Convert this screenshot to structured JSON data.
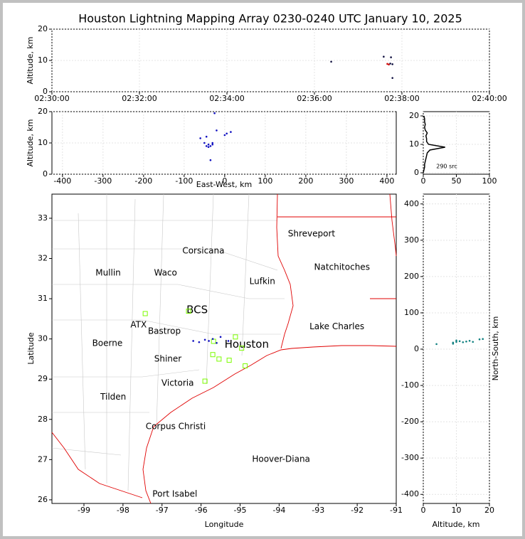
{
  "chart_data": [
    {
      "type": "scatter",
      "title": "Houston Lightning Mapping Array 0230-0240 UTC January 10, 2025",
      "ylabel": "Altitude, km",
      "grid": true,
      "xlim": [
        "02:30:00",
        "02:40:00"
      ],
      "xticks": [
        "02:30:00",
        "02:32:00",
        "02:34:00",
        "02:36:00",
        "02:38:00",
        "02:40:00"
      ],
      "ylim": [
        0,
        20
      ],
      "yticks": [
        0,
        10,
        20
      ],
      "series": [
        {
          "color": "#101040",
          "marker": "dot",
          "x": [
            "02:36:23",
            "02:37:35",
            "02:37:44",
            "02:37:45",
            "02:37:47",
            "02:37:47"
          ],
          "values": [
            9.6,
            11.2,
            9.0,
            11.0,
            8.8,
            4.4
          ]
        },
        {
          "color": "#d01010",
          "marker": "dot",
          "x": [
            "02:37:40",
            "02:37:42"
          ],
          "values": [
            8.9,
            8.7
          ]
        }
      ]
    },
    {
      "type": "scatter",
      "xlabel": "East-West, km",
      "ylabel": "Altitude, km",
      "grid": true,
      "xlim": [
        -426,
        423
      ],
      "xticks": [
        -400,
        -300,
        -200,
        -100,
        0,
        100,
        200,
        300,
        400
      ],
      "ylim": [
        0,
        20
      ],
      "yticks": [
        0,
        10,
        20
      ],
      "series": [
        {
          "color": "#1010c0",
          "marker": "dot",
          "x": [
            -60,
            -50,
            -45,
            -40,
            -35,
            -30,
            -40,
            -30,
            -20,
            0,
            5,
            15,
            -35,
            -25,
            -45
          ],
          "values": [
            11.5,
            10,
            9,
            9.5,
            9,
            9.5,
            8.7,
            10,
            14,
            12.5,
            13,
            13.5,
            4.5,
            19.5,
            12
          ]
        }
      ]
    },
    {
      "type": "line",
      "annotation": "290 src",
      "grid": true,
      "xlim": [
        0,
        100
      ],
      "xticks": [
        0,
        50,
        100
      ],
      "ylim": [
        -0.5,
        21.5
      ],
      "yticks": [
        0,
        10,
        20
      ],
      "series": [
        {
          "color": "#000000",
          "x": [
            0,
            1,
            2,
            2,
            3,
            4,
            5,
            6,
            10,
            33,
            8,
            5,
            5,
            4,
            6,
            3,
            2,
            3,
            2,
            2,
            1
          ],
          "values": [
            0,
            1,
            2,
            3,
            4,
            5,
            6,
            7,
            8,
            9,
            10,
            11,
            12,
            13,
            14,
            15,
            16,
            17,
            18,
            19,
            20
          ]
        }
      ]
    },
    {
      "type": "map",
      "xlabel": "Longitude",
      "ylabel": "Latitude",
      "grid": false,
      "xlim": [
        -99.82,
        -91
      ],
      "xticks": [
        -99,
        -98,
        -97,
        -96,
        -95,
        -94,
        -93,
        -92,
        -91
      ],
      "ylim": [
        25.91,
        33.6
      ],
      "yticks": [
        26,
        27,
        28,
        29,
        30,
        31,
        32,
        33
      ],
      "annotations": [
        {
          "text": "Shreveport",
          "x": -93.17,
          "y": 32.61,
          "color": "#000000"
        },
        {
          "text": "Corsicana",
          "x": -95.94,
          "y": 32.19,
          "color": "#000000"
        },
        {
          "text": "Natchitoches",
          "x": -92.39,
          "y": 31.78,
          "color": "#000000"
        },
        {
          "text": "Mullin",
          "x": -98.38,
          "y": 31.64,
          "color": "#ff8c40"
        },
        {
          "text": "Waco",
          "x": -96.91,
          "y": 31.64,
          "color": "#000000"
        },
        {
          "text": "Lufkin",
          "x": -94.43,
          "y": 31.43,
          "color": "#000000"
        },
        {
          "text": "BCS",
          "x": -96.1,
          "y": 30.72,
          "color": "#800000",
          "large": true
        },
        {
          "text": "ATX",
          "x": -97.6,
          "y": 30.35,
          "color": "#ff8c40"
        },
        {
          "text": "Bastrop",
          "x": -96.94,
          "y": 30.19,
          "color": "#000000"
        },
        {
          "text": "Lake Charles",
          "x": -92.52,
          "y": 30.3,
          "color": "#000000"
        },
        {
          "text": "Boerne",
          "x": -98.4,
          "y": 29.89,
          "color": "#000000"
        },
        {
          "text": "Houston",
          "x": -94.83,
          "y": 29.86,
          "color": "#ffa500",
          "large": true
        },
        {
          "text": "Shiner",
          "x": -96.85,
          "y": 29.5,
          "color": "#000000"
        },
        {
          "text": "Victoria",
          "x": -96.6,
          "y": 28.9,
          "color": "#000000"
        },
        {
          "text": "Tilden",
          "x": -98.25,
          "y": 28.55,
          "color": "#000000"
        },
        {
          "text": "Corpus Christi",
          "x": -96.65,
          "y": 27.82,
          "color": "#000000"
        },
        {
          "text": "Hoover-Diana",
          "x": -93.95,
          "y": 27.01,
          "color": "#0000cc"
        },
        {
          "text": "Port Isabel",
          "x": -96.67,
          "y": 26.14,
          "color": "#000000"
        }
      ],
      "series": [
        {
          "color": "#7cfc00",
          "marker": "square",
          "x": [
            -97.43,
            -96.32,
            -95.12,
            -95.7,
            -95.54,
            -95.28,
            -94.96,
            -94.87,
            -95.9,
            -95.68
          ],
          "values": [
            30.63,
            30.69,
            30.05,
            29.61,
            29.5,
            29.47,
            29.77,
            29.33,
            28.95,
            29.94
          ]
        },
        {
          "color": "#1010c0",
          "marker": "dot",
          "x": [
            -96.2,
            -96.05,
            -95.9,
            -95.8,
            -95.6,
            -95.5,
            -95.3,
            -95.7
          ],
          "values": [
            29.95,
            29.92,
            29.98,
            29.95,
            29.9,
            30.05,
            29.95,
            30.0
          ]
        }
      ]
    },
    {
      "type": "scatter",
      "xlabel": "Altitude, km",
      "ylabel": "North-South, km",
      "grid": true,
      "xlim": [
        0,
        20
      ],
      "xticks": [
        0,
        10,
        20
      ],
      "ylim": [
        -425,
        427
      ],
      "yticks": [
        -400,
        -300,
        -200,
        -100,
        0,
        100,
        200,
        300,
        400
      ],
      "series": [
        {
          "color": "#108080",
          "marker": "dot",
          "x": [
            4,
            9,
            10,
            11,
            12,
            13,
            14,
            9,
            10,
            17,
            18,
            15
          ],
          "values": [
            14,
            18,
            20,
            22,
            19,
            21,
            23,
            15,
            24,
            27,
            28,
            20
          ]
        }
      ]
    }
  ]
}
